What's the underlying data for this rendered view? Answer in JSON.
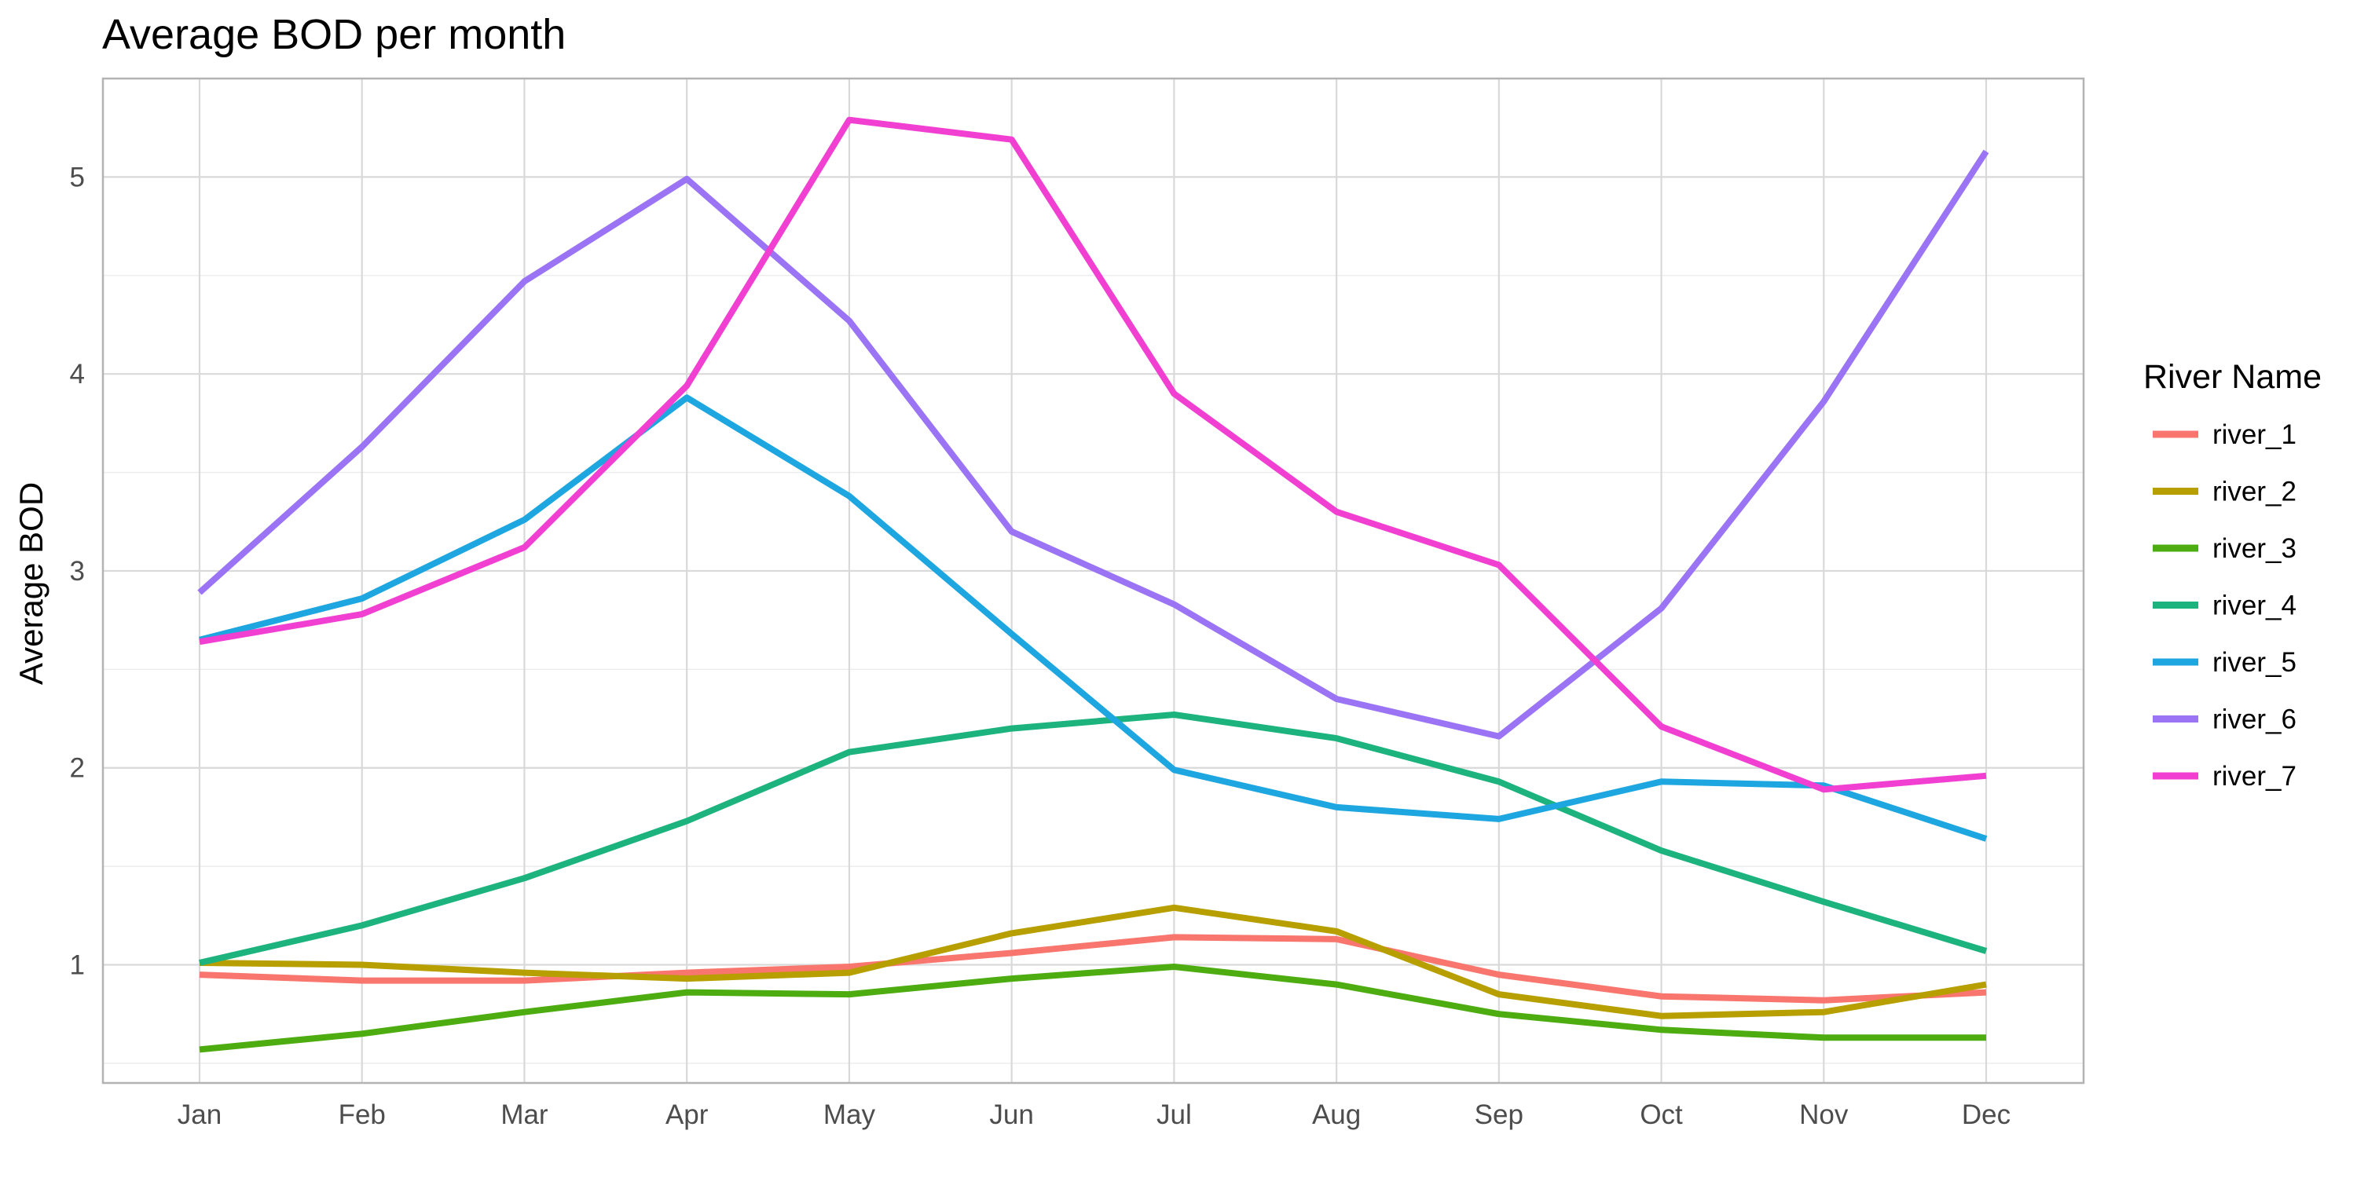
{
  "chart_data": {
    "type": "line",
    "title": "Average BOD per month",
    "xlabel": "",
    "ylabel": "Average BOD",
    "categories": [
      "Jan",
      "Feb",
      "Mar",
      "Apr",
      "May",
      "Jun",
      "Jul",
      "Aug",
      "Sep",
      "Oct",
      "Nov",
      "Dec"
    ],
    "ylim": [
      0.4,
      5.5
    ],
    "yticks": [
      1,
      2,
      3,
      4,
      5
    ],
    "grid": true,
    "legend": {
      "title": "River Name",
      "position": "right"
    },
    "series": [
      {
        "name": "river_1",
        "color": "#F8766D",
        "values": [
          0.95,
          0.92,
          0.92,
          0.96,
          0.99,
          1.06,
          1.14,
          1.13,
          0.95,
          0.84,
          0.82,
          0.86
        ]
      },
      {
        "name": "river_2",
        "color": "#B79F00",
        "values": [
          1.01,
          1.0,
          0.96,
          0.93,
          0.96,
          1.16,
          1.29,
          1.17,
          0.85,
          0.74,
          0.76,
          0.9
        ]
      },
      {
        "name": "river_3",
        "color": "#4DAC0F",
        "values": [
          0.57,
          0.65,
          0.76,
          0.86,
          0.85,
          0.93,
          0.99,
          0.9,
          0.75,
          0.67,
          0.63,
          0.63
        ]
      },
      {
        "name": "river_4",
        "color": "#1DB37E",
        "values": [
          1.01,
          1.2,
          1.44,
          1.73,
          2.08,
          2.2,
          2.27,
          2.15,
          1.93,
          1.58,
          1.32,
          1.07
        ]
      },
      {
        "name": "river_5",
        "color": "#1DA6E0",
        "values": [
          2.65,
          2.86,
          3.26,
          3.88,
          3.38,
          2.68,
          1.99,
          1.8,
          1.74,
          1.93,
          1.91,
          1.64
        ]
      },
      {
        "name": "river_6",
        "color": "#9A74F5",
        "values": [
          2.89,
          3.63,
          4.47,
          4.99,
          4.27,
          3.2,
          2.83,
          2.35,
          2.16,
          2.81,
          3.86,
          5.13
        ]
      },
      {
        "name": "river_7",
        "color": "#F13FD2",
        "values": [
          2.64,
          2.78,
          3.12,
          3.94,
          5.29,
          5.19,
          3.9,
          3.3,
          3.03,
          2.21,
          1.89,
          1.96
        ]
      }
    ]
  }
}
